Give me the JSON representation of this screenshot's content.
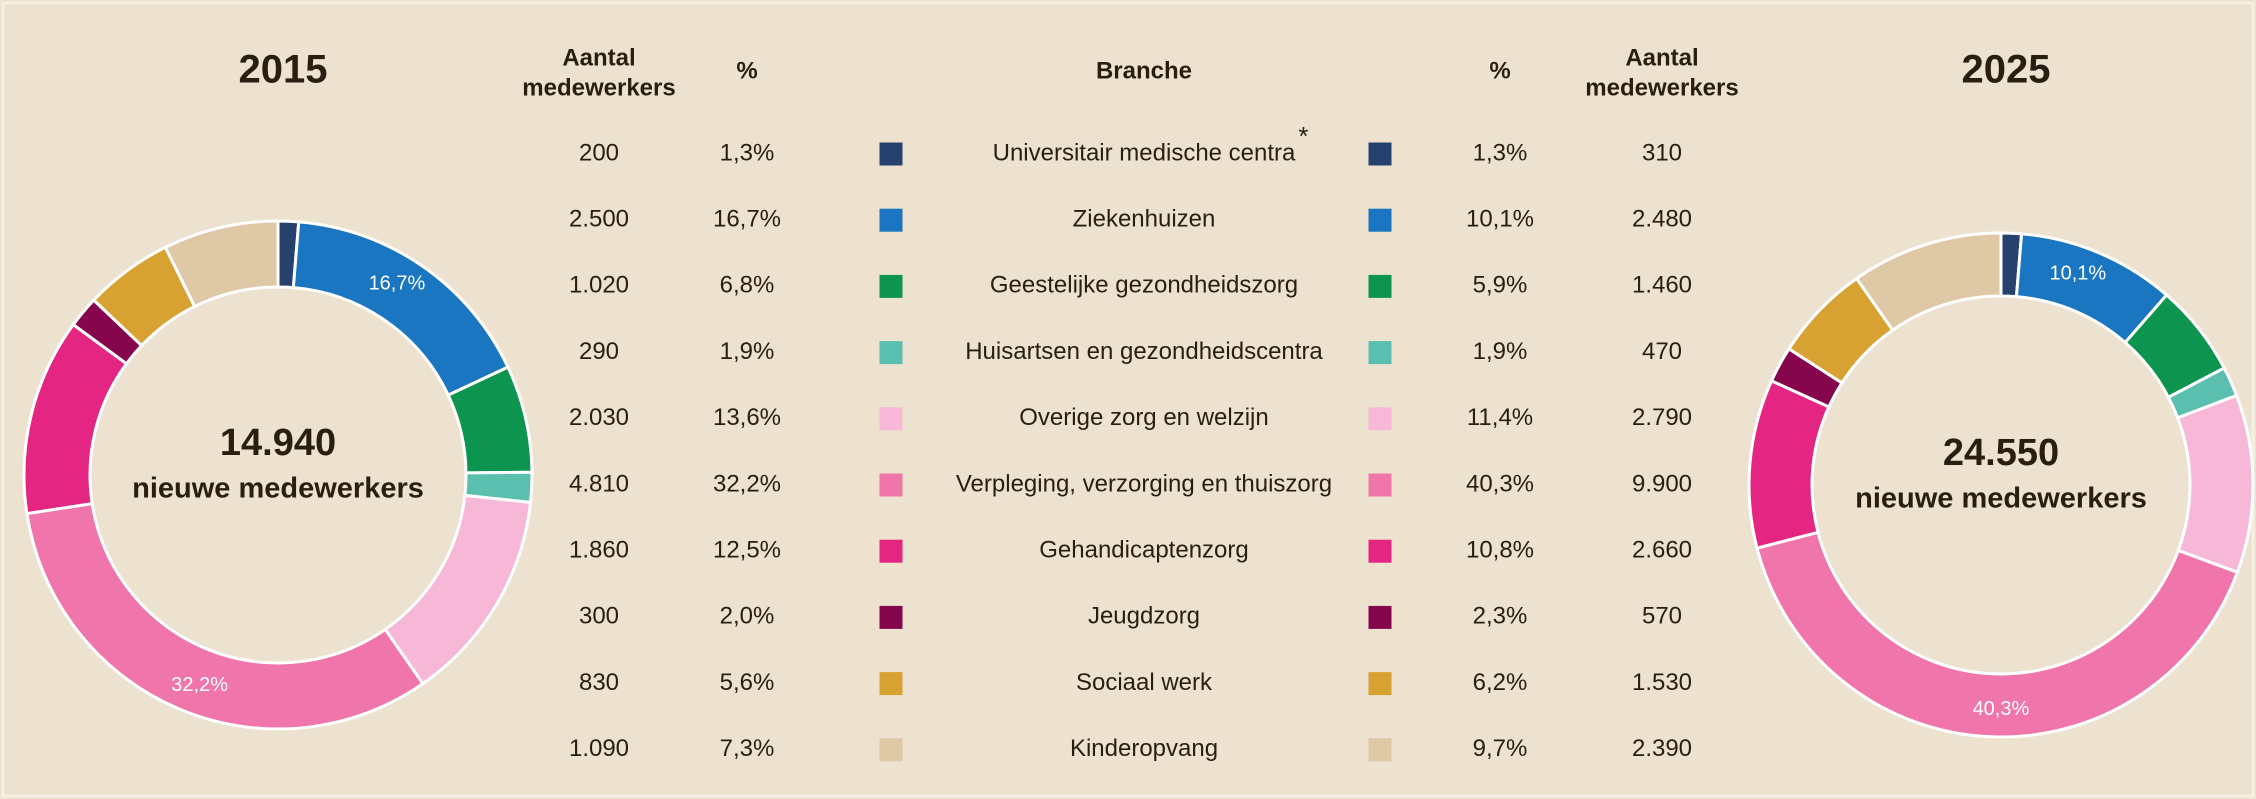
{
  "chart_data": [
    {
      "type": "donut",
      "title": "2015",
      "center_value": "14.940",
      "center_label": "nieuwe medewerkers",
      "values": [
        1.3,
        16.7,
        6.8,
        1.9,
        13.6,
        32.2,
        12.5,
        2.0,
        5.6,
        7.3
      ],
      "value_labels": [
        null,
        "16,7%",
        null,
        null,
        null,
        "32,2%",
        null,
        null,
        null,
        null
      ],
      "colors": [
        "#26416e",
        "#1b76c1",
        "#0d9550",
        "#5bbfaf",
        "#f6b8d6",
        "#f075aa",
        "#e42582",
        "#85064d",
        "#d8a232",
        "#dfc8a6"
      ]
    },
    {
      "type": "donut",
      "title": "2025",
      "center_value": "24.550",
      "center_label": "nieuwe medewerkers",
      "values": [
        1.3,
        10.1,
        5.9,
        1.9,
        11.4,
        40.3,
        10.8,
        2.3,
        6.2,
        9.7
      ],
      "value_labels": [
        null,
        "10,1%",
        null,
        null,
        null,
        "40,3%",
        null,
        null,
        null,
        null
      ],
      "colors": [
        "#26416e",
        "#1b76c1",
        "#0d9550",
        "#5bbfaf",
        "#f6b8d6",
        "#f075aa",
        "#e42582",
        "#85064d",
        "#d8a232",
        "#dfc8a6"
      ]
    }
  ],
  "table": {
    "headers": [
      [
        "Aantal",
        "medewerkers"
      ],
      [
        "%"
      ],
      [
        "Branche"
      ],
      [
        "%"
      ],
      [
        "Aantal",
        "medewerkers"
      ]
    ],
    "footnote_mark": "*",
    "rows": [
      [
        "200",
        "1,3%",
        "Universitair medische centra",
        "1,3%",
        "310"
      ],
      [
        "2.500",
        "16,7%",
        "Ziekenhuizen",
        "10,1%",
        "2.480"
      ],
      [
        "1.020",
        "6,8%",
        "Geestelijke gezondheidszorg",
        "5,9%",
        "1.460"
      ],
      [
        "290",
        "1,9%",
        "Huisartsen en gezondheidscentra",
        "1,9%",
        "470"
      ],
      [
        "2.030",
        "13,6%",
        "Overige zorg en welzijn",
        "11,4%",
        "2.790"
      ],
      [
        "4.810",
        "32,2%",
        "Verpleging, verzorging en thuiszorg",
        "40,3%",
        "9.900"
      ],
      [
        "1.860",
        "12,5%",
        "Gehandicaptenzorg",
        "10,8%",
        "2.660"
      ],
      [
        "300",
        "2,0%",
        "Jeugdzorg",
        "2,3%",
        "570"
      ],
      [
        "830",
        "5,6%",
        "Sociaal werk",
        "6,2%",
        "1.530"
      ],
      [
        "1.090",
        "7,3%",
        "Kinderopvang",
        "9,7%",
        "2.390"
      ]
    ]
  }
}
